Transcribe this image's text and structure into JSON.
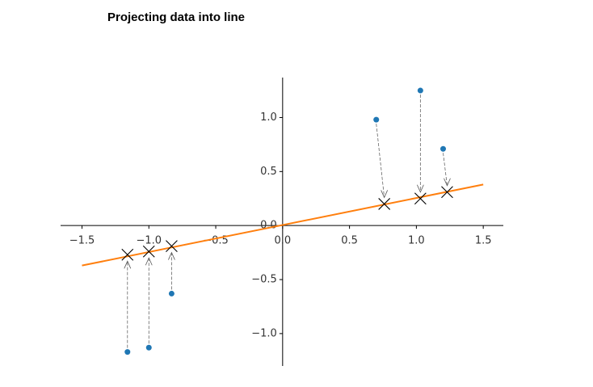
{
  "chart_data": {
    "type": "scatter",
    "title": "Projecting data into line",
    "xlim": [
      -1.66,
      1.65
    ],
    "ylim": [
      -1.3,
      1.37
    ],
    "xticks": [
      {
        "value": -1.5,
        "label": "−1.5"
      },
      {
        "value": -1.0,
        "label": "−1.0"
      },
      {
        "value": -0.5,
        "label": "−0.5"
      },
      {
        "value": 0.0,
        "label": "0.0"
      },
      {
        "value": 0.5,
        "label": "0.5"
      },
      {
        "value": 1.0,
        "label": "1.0"
      },
      {
        "value": 1.5,
        "label": "1.5"
      }
    ],
    "yticks": [
      {
        "value": -1.0,
        "label": "−1.0"
      },
      {
        "value": -0.5,
        "label": "−0.5"
      },
      {
        "value": 0.0,
        "label": "0.0"
      },
      {
        "value": 0.5,
        "label": "0.5"
      },
      {
        "value": 1.0,
        "label": "1.0"
      }
    ],
    "series": [
      {
        "marker": "dot",
        "color": "#1f77b4",
        "x": [
          -1.16,
          -1.0,
          -0.83,
          0.7,
          1.03,
          1.2
        ],
        "values": [
          -1.17,
          -1.13,
          -0.63,
          0.98,
          1.25,
          0.71
        ]
      },
      {
        "marker": "x",
        "color": "#000000",
        "x": [
          -1.16,
          -1.0,
          -0.83,
          0.76,
          1.03,
          1.23
        ],
        "values": [
          -0.27,
          -0.24,
          -0.19,
          0.2,
          0.25,
          0.31
        ]
      },
      {
        "marker": "line",
        "color": "#ff7f0e",
        "x": [
          -1.5,
          1.5
        ],
        "values": [
          -0.37,
          0.38
        ]
      }
    ]
  }
}
